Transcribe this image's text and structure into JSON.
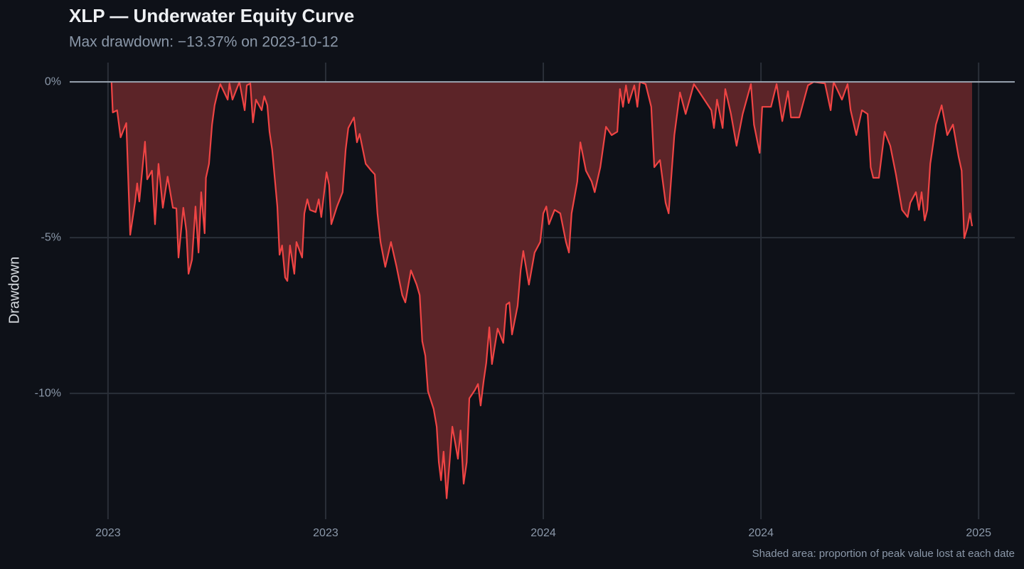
{
  "chart_data": {
    "type": "area",
    "title": "XLP — Underwater Equity Curve",
    "subtitle": "Max drawdown: −13.37%  on 2023-10-12",
    "y_label": "Drawdown",
    "note": "Shaded area: proportion of peak value lost at each date",
    "color": "#ef4444",
    "fill_color": "#5c2428",
    "grid": true,
    "xlim": [
      2022.912,
      2025.083
    ],
    "ylim": [
      -14.04,
      0.62
    ],
    "xticks": [
      {
        "value": 2023,
        "label": "2023"
      },
      {
        "value": 2023.5,
        "label": "2023"
      },
      {
        "value": 2024,
        "label": "2024"
      },
      {
        "value": 2024.5,
        "label": "2024"
      },
      {
        "value": 2025,
        "label": "2025"
      }
    ],
    "yticks": [
      {
        "value": 0,
        "label": "0%"
      },
      {
        "value": -5,
        "label": "-5%"
      },
      {
        "value": -10,
        "label": "-10%"
      }
    ],
    "x": [
      2023.008,
      2023.011,
      2023.021,
      2023.029,
      2023.042,
      2023.051,
      2023.062,
      2023.067,
      2023.072,
      2023.085,
      2023.09,
      2023.101,
      2023.108,
      2023.116,
      2023.126,
      2023.137,
      2023.149,
      2023.157,
      2023.162,
      2023.173,
      2023.18,
      2023.185,
      2023.193,
      2023.201,
      2023.208,
      2023.214,
      2023.222,
      2023.225,
      2023.232,
      2023.239,
      2023.245,
      2023.252,
      2023.258,
      2023.275,
      2023.279,
      2023.286,
      2023.302,
      2023.314,
      2023.319,
      2023.327,
      2023.333,
      2023.34,
      2023.353,
      2023.359,
      2023.366,
      2023.371,
      2023.377,
      2023.389,
      2023.394,
      2023.4,
      2023.407,
      2023.412,
      2023.418,
      2023.428,
      2023.433,
      2023.446,
      2023.451,
      2023.458,
      2023.464,
      2023.477,
      2023.484,
      2023.49,
      2023.502,
      2023.508,
      2023.513,
      2023.526,
      2023.539,
      2023.546,
      2023.552,
      2023.565,
      2023.572,
      2023.578,
      2023.592,
      2023.605,
      2023.613,
      2023.619,
      2023.626,
      2023.637,
      2023.65,
      2023.663,
      2023.676,
      2023.683,
      2023.696,
      2023.709,
      2023.716,
      2023.722,
      2023.729,
      2023.735,
      2023.748,
      2023.755,
      2023.76,
      2023.765,
      2023.771,
      2023.778,
      2023.784,
      2023.791,
      2023.804,
      2023.81,
      2023.817,
      2023.824,
      2023.83,
      2023.843,
      2023.85,
      2023.856,
      2023.863,
      2023.869,
      2023.876,
      2023.882,
      2023.895,
      2023.908,
      2023.915,
      2023.922,
      2023.928,
      2023.941,
      2023.948,
      2023.954,
      2023.967,
      2023.98,
      2023.993,
      2024.0,
      2024.007,
      2024.013,
      2024.026,
      2024.039,
      2024.052,
      2024.059,
      2024.065,
      2024.078,
      2024.085,
      2024.098,
      2024.111,
      2024.118,
      2024.131,
      2024.144,
      2024.157,
      2024.17,
      2024.176,
      2024.183,
      2024.19,
      2024.196,
      2024.209,
      2024.216,
      2024.222,
      2024.235,
      2024.248,
      2024.255,
      2024.268,
      2024.281,
      2024.288,
      2024.301,
      2024.314,
      2024.327,
      2024.346,
      2024.359,
      2024.386,
      2024.392,
      2024.399,
      2024.412,
      2024.418,
      2024.431,
      2024.444,
      2024.458,
      2024.477,
      2024.484,
      2024.497,
      2024.503,
      2024.523,
      2024.536,
      2024.549,
      2024.562,
      2024.569,
      2024.588,
      2024.608,
      2024.621,
      2024.647,
      2024.66,
      2024.667,
      2024.686,
      2024.699,
      2024.706,
      2024.719,
      2024.732,
      2024.745,
      2024.752,
      2024.758,
      2024.771,
      2024.784,
      2024.797,
      2024.81,
      2024.824,
      2024.837,
      2024.843,
      2024.856,
      2024.863,
      2024.869,
      2024.876,
      2024.882,
      2024.889,
      2024.902,
      2024.915,
      2024.928,
      2024.941,
      2024.954,
      2024.961,
      2024.967,
      2024.974,
      2024.98,
      2024.985
    ],
    "values": [
      0,
      -0.98,
      -0.91,
      -1.78,
      -1.32,
      -4.91,
      -3.88,
      -3.26,
      -3.84,
      -1.92,
      -3.13,
      -2.85,
      -4.57,
      -2.63,
      -4.04,
      -3.04,
      -4.04,
      -4.06,
      -5.64,
      -4.04,
      -4.79,
      -6.16,
      -5.71,
      -4.0,
      -5.48,
      -3.54,
      -4.86,
      -3.08,
      -2.63,
      -1.37,
      -0.75,
      -0.34,
      -0.07,
      -0.57,
      -0.05,
      -0.57,
      0,
      -0.91,
      -0.11,
      -0.05,
      -1.3,
      -0.57,
      -0.91,
      -0.46,
      -0.75,
      -1.6,
      -2.17,
      -4.0,
      -5.55,
      -5.25,
      -6.28,
      -6.39,
      -5.25,
      -6.16,
      -5.14,
      -5.64,
      -4.22,
      -3.77,
      -4.11,
      -4.18,
      -3.77,
      -4.34,
      -2.9,
      -3.31,
      -4.57,
      -4.0,
      -3.54,
      -2.17,
      -1.48,
      -1.14,
      -1.94,
      -1.67,
      -2.63,
      -2.85,
      -2.97,
      -4.22,
      -5.14,
      -5.94,
      -5.14,
      -5.94,
      -6.85,
      -7.08,
      -6.05,
      -6.51,
      -6.85,
      -8.33,
      -8.79,
      -9.93,
      -10.5,
      -11.07,
      -12.21,
      -12.79,
      -11.87,
      -13.37,
      -12.33,
      -11.07,
      -12.1,
      -11.19,
      -12.9,
      -12.21,
      -10.16,
      -9.89,
      -9.7,
      -10.39,
      -9.59,
      -9.02,
      -7.88,
      -9.06,
      -7.92,
      -8.38,
      -7.15,
      -7.08,
      -8.11,
      -7.19,
      -6.05,
      -5.43,
      -6.51,
      -5.48,
      -5.14,
      -4.22,
      -4.0,
      -4.57,
      -4.11,
      -4.22,
      -5.14,
      -5.48,
      -4.22,
      -3.2,
      -1.94,
      -2.85,
      -3.2,
      -3.54,
      -2.74,
      -1.44,
      -1.71,
      -1.6,
      -0.23,
      -0.8,
      -0.11,
      -0.68,
      -0.11,
      -0.8,
      0,
      -0.07,
      -0.8,
      -2.74,
      -2.51,
      -3.88,
      -4.22,
      -1.71,
      -0.34,
      -1.03,
      -0.07,
      -0.34,
      -0.91,
      -1.48,
      -0.57,
      -1.48,
      -0.23,
      -1.03,
      -2.05,
      -1.03,
      -0.07,
      -1.37,
      -2.28,
      -0.8,
      -0.8,
      -0.07,
      -1.26,
      -0.3,
      -1.14,
      -1.14,
      -0.11,
      0,
      -0.05,
      -0.91,
      0,
      -0.57,
      -0.07,
      -0.91,
      -1.71,
      -0.91,
      -1.03,
      -2.74,
      -3.08,
      -3.08,
      -1.6,
      -2.05,
      -2.97,
      -4.11,
      -4.34,
      -3.88,
      -3.54,
      -4.11,
      -3.54,
      -4.45,
      -4.11,
      -2.63,
      -1.37,
      -0.75,
      -1.71,
      -1.37,
      -2.4,
      -2.85,
      -5.02,
      -4.68,
      -4.22,
      -4.63
    ]
  }
}
